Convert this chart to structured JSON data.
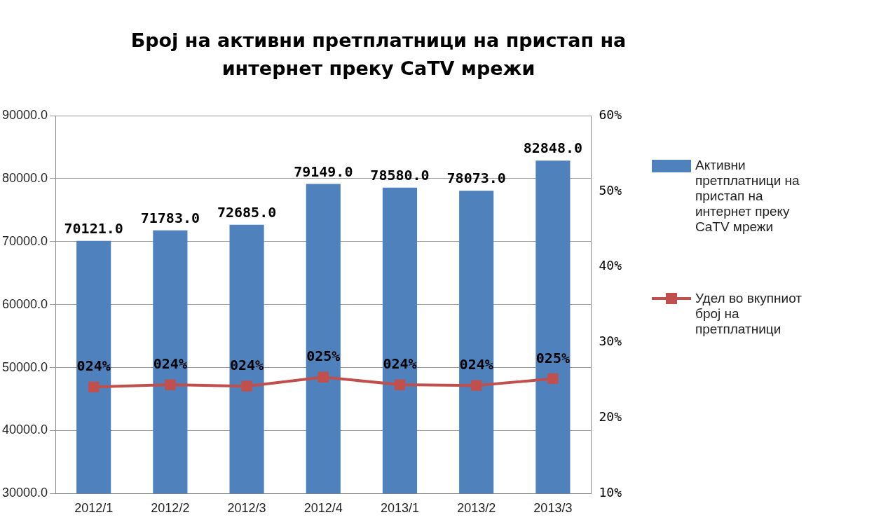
{
  "chart_data": {
    "type": "bar",
    "title": "Број на активни претплатници на пристап на интернет преку CaTV мрежи",
    "categories": [
      "2012/1",
      "2012/2",
      "2012/3",
      "2012/4",
      "2013/1",
      "2013/2",
      "2013/3"
    ],
    "series": [
      {
        "name": "Активни претплатници на пристап на интернет преку CaTV мрежи",
        "color": "#4f81bd",
        "values": [
          70121,
          71783,
          72685,
          79149,
          78580,
          78073,
          82848
        ],
        "value_labels": [
          "70121.0",
          "71783.0",
          "72685.0",
          "79149.0",
          "78580.0",
          "78073.0",
          "82848.0"
        ]
      },
      {
        "name": "Удел во вкупниот број на претплатници",
        "type": "line",
        "axis": "y2",
        "color": "#c0504d",
        "marker": "square",
        "values": [
          24.1,
          24.4,
          24.2,
          25.4,
          24.4,
          24.3,
          25.2
        ],
        "value_labels": [
          "024%",
          "024%",
          "024%",
          "025%",
          "024%",
          "024%",
          "025%"
        ]
      }
    ],
    "ylim": [
      30000,
      90000
    ],
    "yticks": [
      {
        "value": 30000,
        "label": "30000.0"
      },
      {
        "value": 40000,
        "label": "40000.0"
      },
      {
        "value": 50000,
        "label": "50000.0"
      },
      {
        "value": 60000,
        "label": "60000.0"
      },
      {
        "value": 70000,
        "label": "70000.0"
      },
      {
        "value": 80000,
        "label": "80000.0"
      },
      {
        "value": 90000,
        "label": "90000.0"
      }
    ],
    "y2lim": [
      10,
      60
    ],
    "y2ticks": [
      {
        "value": 10,
        "label": "10%"
      },
      {
        "value": 20,
        "label": "20%"
      },
      {
        "value": 30,
        "label": "30%"
      },
      {
        "value": 40,
        "label": "40%"
      },
      {
        "value": 50,
        "label": "50%"
      },
      {
        "value": 60,
        "label": "60%"
      }
    ],
    "grid": "y",
    "legend": "right"
  }
}
